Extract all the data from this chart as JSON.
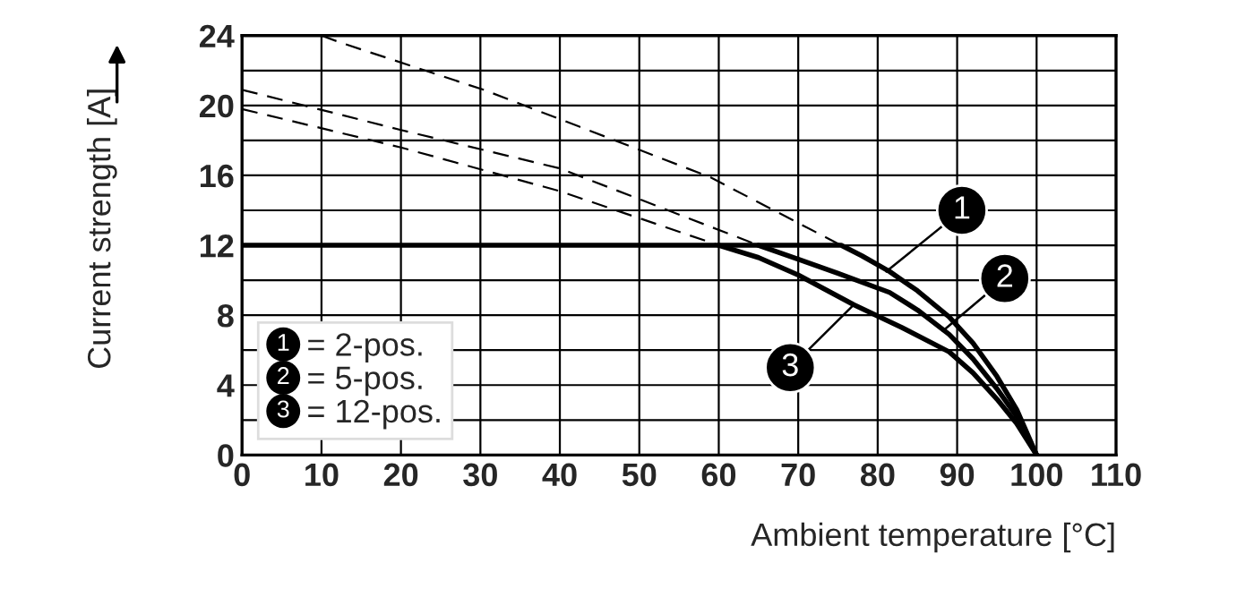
{
  "chart_data": {
    "type": "line",
    "xlabel": "Ambient temperature [°C]",
    "ylabel": "Current strength [A]",
    "series": [
      {
        "name": "1 = 2-pos.",
        "color": "#000000",
        "line_style": "solid",
        "x": [
          0,
          75.4,
          78,
          81.5,
          85,
          89,
          92,
          95,
          97.5,
          100
        ],
        "values": [
          12,
          12,
          11.4,
          10.5,
          9.4,
          7.9,
          6.4,
          4.5,
          2.6,
          0
        ]
      },
      {
        "name": "2 = 5-pos.",
        "color": "#000000",
        "line_style": "solid",
        "x": [
          65,
          70,
          75,
          81.5,
          85,
          89,
          92,
          95,
          97.5,
          100
        ],
        "values": [
          12,
          11.2,
          10.4,
          9.3,
          8.3,
          6.9,
          5.5,
          3.8,
          2.2,
          0
        ]
      },
      {
        "name": "3 = 12-pos.",
        "color": "#000000",
        "line_style": "solid",
        "x": [
          60,
          65,
          70,
          77,
          83,
          89,
          92,
          95,
          97.5,
          100
        ],
        "values": [
          12,
          11.3,
          10.3,
          8.6,
          7.3,
          5.9,
          4.7,
          3.2,
          1.8,
          0
        ]
      },
      {
        "color": "#000000",
        "line_style": "dashed",
        "x": [
          10,
          12.4,
          30.4,
          42.4,
          58.9,
          75.4
        ],
        "values": [
          24,
          23.6,
          20.9,
          18.8,
          15.9,
          12
        ]
      },
      {
        "color": "#000000",
        "line_style": "dashed",
        "x": [
          0,
          20,
          40,
          65
        ],
        "values": [
          20.9,
          18.6,
          16.4,
          12
        ]
      },
      {
        "color": "#000000",
        "line_style": "dashed",
        "x": [
          0,
          20,
          40,
          60
        ],
        "values": [
          19.8,
          17.6,
          15.1,
          12
        ]
      }
    ],
    "annotations": [
      {
        "text": "1",
        "x": 81.1,
        "y": 10.5
      },
      {
        "text": "2",
        "x": 88.2,
        "y": 7.1
      },
      {
        "text": "3",
        "x": 77,
        "y": 8.6
      }
    ],
    "xlim": [
      0,
      110
    ],
    "xticks": [
      0,
      10,
      20,
      30,
      40,
      50,
      60,
      70,
      80,
      90,
      100,
      110
    ],
    "ylim": [
      0,
      24
    ],
    "yticks": [
      0,
      {
        "value": 2,
        "label": null
      },
      4,
      {
        "value": 6,
        "label": null
      },
      8,
      {
        "value": 10,
        "label": null
      },
      12,
      {
        "value": 14,
        "label": null
      },
      16,
      {
        "value": 18,
        "label": null
      },
      20,
      {
        "value": 22,
        "label": null
      },
      24
    ],
    "grid": true,
    "legend": "bottom left",
    "marker": "none"
  }
}
